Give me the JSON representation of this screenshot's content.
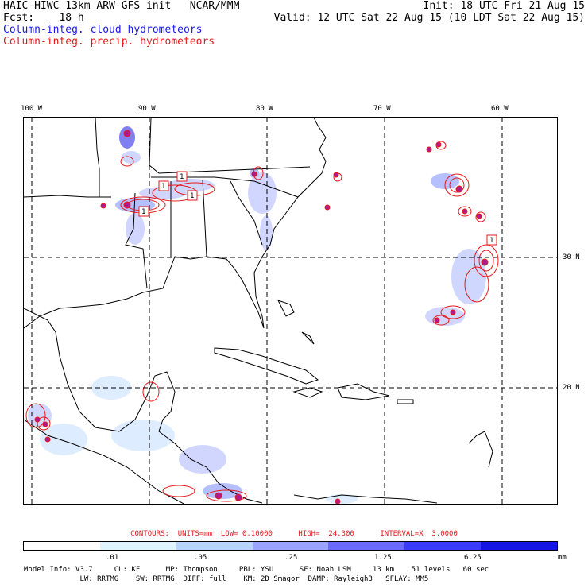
{
  "header": {
    "title_left": "HAIC-HIWC 13km ARW-GFS init   NCAR/MMM",
    "fcst": "Fcst:    18 h",
    "init": "Init: 18 UTC Fri 21 Aug 15",
    "valid": "Valid: 12 UTC Sat 22 Aug 15 (10 LDT Sat 22 Aug 15)",
    "legend_cloud": "Column-integ. cloud hydrometeors",
    "legend_precip": "Column-integ. precip. hydrometeors"
  },
  "map": {
    "lon_labels": [
      "100 W",
      "90 W",
      "80 W",
      "70 W",
      "60 W"
    ],
    "lat_labels": [
      "30 N",
      "20 N"
    ],
    "contour_marker_label": "1",
    "colors": {
      "coast": "#000000",
      "grid": "#000000",
      "cloud_light": "#d8eaff",
      "cloud_mid": "#a9b4ff",
      "cloud_dark": "#6a6af2",
      "precip": "#e61a1a"
    }
  },
  "contour_info": "CONTOURS:  UNITS=mm  LOW= 0.10000      HIGH=  24.300      INTERVAL=X  3.0000",
  "colorbar": {
    "labels": [
      ".01",
      ".05",
      ".25",
      "1.25",
      "6.25",
      "mm"
    ],
    "colors": [
      "#ffffff",
      "#dff4ff",
      "#b7d4ff",
      "#9aa4ff",
      "#6a6aff",
      "#3b3bff",
      "#1515e6"
    ]
  },
  "footer": {
    "line1": "Model Info: V3.7     CU: KF      MP: Thompson     PBL: YSU      SF: Noah LSM     13 km    51 levels   60 sec",
    "line2": "             LW: RRTMG    SW: RRTMG  DIFF: full    KM: 2D Smagor  DAMP: Rayleigh3   SFLAY: MM5"
  }
}
